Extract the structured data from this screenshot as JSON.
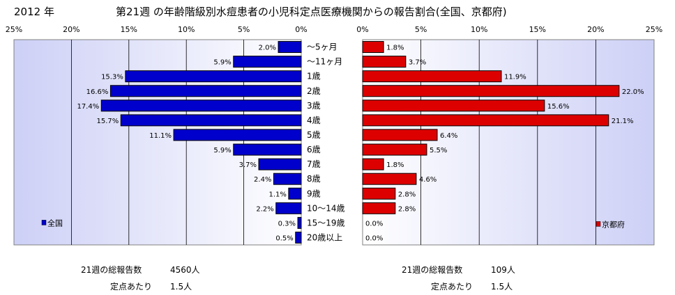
{
  "header": {
    "year": "2012 年",
    "title": "第21週 の年齢階級別水痘患者の小児科定点医療機関からの報告割合(全国、京都府)"
  },
  "chart_data": [
    {
      "type": "bar",
      "orientation": "horizontal",
      "direction": "right-to-left",
      "series": [
        {
          "name": "全国",
          "color": "#0000cc",
          "values": [
            2.0,
            5.9,
            15.3,
            16.6,
            17.4,
            15.7,
            11.1,
            5.9,
            3.7,
            2.4,
            1.1,
            2.2,
            0.3,
            0.5
          ]
        }
      ],
      "value_labels": [
        "2.0%",
        "5.9%",
        "15.3%",
        "16.6%",
        "17.4%",
        "15.7%",
        "11.1%",
        "5.9%",
        "3.7%",
        "2.4%",
        "1.1%",
        "2.2%",
        "0.3%",
        "0.5%"
      ],
      "xlim": [
        0,
        25
      ],
      "xticks": [
        "25%",
        "20%",
        "15%",
        "10%",
        "5%",
        "0%"
      ],
      "legend": "全国",
      "legend_position": "bottom-left",
      "grid": true
    },
    {
      "type": "bar",
      "orientation": "horizontal",
      "direction": "left-to-right",
      "series": [
        {
          "name": "京都府",
          "color": "#dd0000",
          "values": [
            1.8,
            3.7,
            11.9,
            22.0,
            15.6,
            21.1,
            6.4,
            5.5,
            1.8,
            4.6,
            2.8,
            2.8,
            0.0,
            0.0
          ]
        }
      ],
      "value_labels": [
        "1.8%",
        "3.7%",
        "11.9%",
        "22.0%",
        "15.6%",
        "21.1%",
        "6.4%",
        "5.5%",
        "1.8%",
        "4.6%",
        "2.8%",
        "2.8%",
        "0.0%",
        "0.0%"
      ],
      "xlim": [
        0,
        25
      ],
      "xticks": [
        "0%",
        "5%",
        "10%",
        "15%",
        "20%",
        "25%"
      ],
      "legend": "京都府",
      "legend_position": "bottom-right",
      "grid": true
    }
  ],
  "categories": [
    "～5ヶ月",
    "～11ヶ月",
    "1歳",
    "2歳",
    "3歳",
    "4歳",
    "5歳",
    "6歳",
    "7歳",
    "8歳",
    "9歳",
    "10～14歳",
    "15～19歳",
    "20歳以上"
  ],
  "footer": {
    "national": {
      "total_label": "21週の総報告数",
      "total_value": "4560人",
      "per_label": "定点あたり",
      "per_value": "1.5人"
    },
    "kyoto": {
      "total_label": "21週の総報告数",
      "total_value": "109人",
      "per_label": "定点あたり",
      "per_value": "1.5人"
    }
  }
}
